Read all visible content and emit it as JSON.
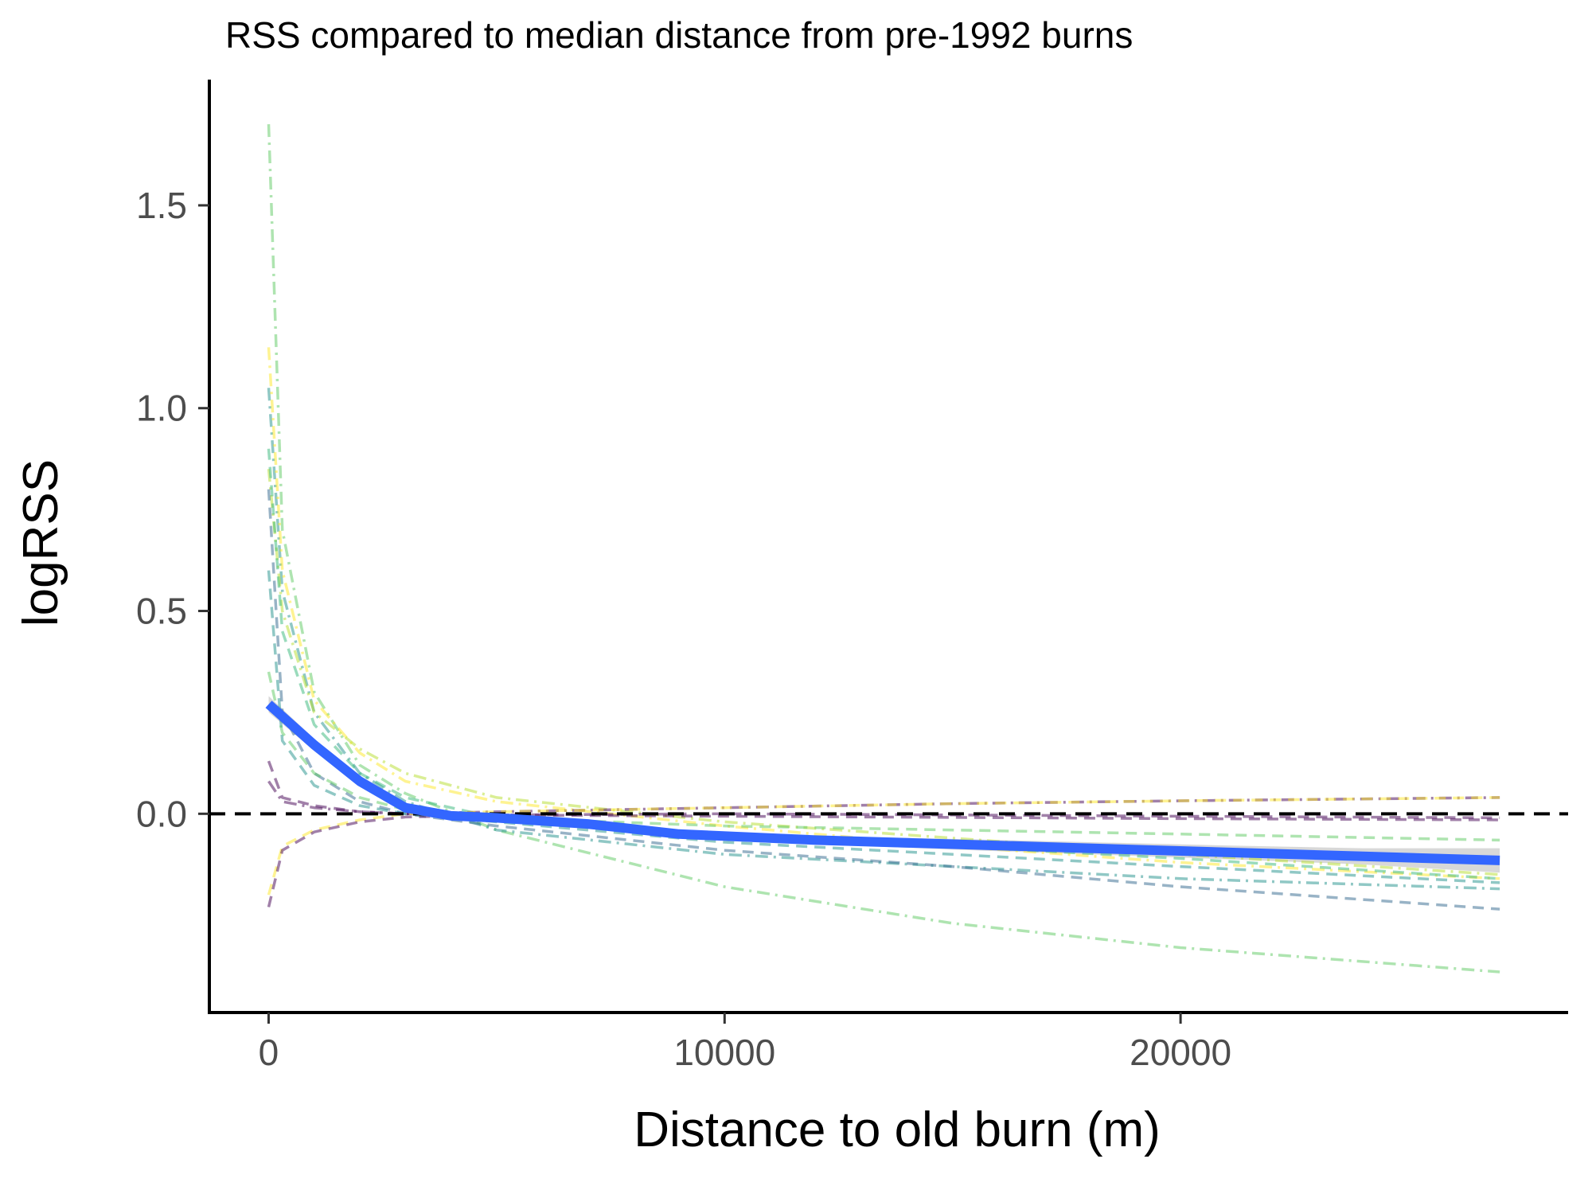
{
  "chart_data": {
    "type": "line",
    "title": "RSS compared to median distance from pre-1992 burns",
    "xlabel": "Distance to old burn (m)",
    "ylabel": "logRSS",
    "xlim": [
      -1300,
      28500
    ],
    "ylim": [
      -0.49,
      1.81
    ],
    "x_ticks": [
      0,
      10000,
      20000
    ],
    "x_tick_labels": [
      "0",
      "10000",
      "20000"
    ],
    "y_ticks": [
      0.0,
      0.5,
      1.0,
      1.5
    ],
    "y_tick_labels": [
      "0.0",
      "0.5",
      "1.0",
      "1.5"
    ],
    "grid": false,
    "legend": "none",
    "reference_line": {
      "y": 0,
      "color": "#000000",
      "style": "dashed"
    },
    "mean_fit": {
      "color": "#3366ff",
      "band_color": "#bebebe",
      "x": [
        0,
        1000,
        2000,
        3000,
        4000,
        5000,
        7000,
        9000,
        12000,
        15000,
        18000,
        21000,
        24000,
        27000
      ],
      "y": [
        0.27,
        0.17,
        0.08,
        0.015,
        -0.005,
        -0.01,
        -0.025,
        -0.05,
        -0.065,
        -0.075,
        -0.085,
        -0.095,
        -0.105,
        -0.115
      ],
      "lower": [
        0.25,
        0.155,
        0.07,
        0.005,
        -0.015,
        -0.02,
        -0.035,
        -0.06,
        -0.075,
        -0.088,
        -0.1,
        -0.112,
        -0.125,
        -0.145
      ],
      "upper": [
        0.29,
        0.185,
        0.09,
        0.025,
        0.005,
        0.0,
        -0.015,
        -0.04,
        -0.055,
        -0.062,
        -0.07,
        -0.078,
        -0.085,
        -0.085
      ]
    },
    "series": [
      {
        "color": "#5ec962",
        "dash": "dashdot",
        "x": [
          0,
          300,
          1000,
          2000,
          3000,
          5000,
          10000,
          15000,
          20000,
          27000
        ],
        "y": [
          1.7,
          0.7,
          0.3,
          0.12,
          0.05,
          -0.04,
          -0.18,
          -0.27,
          -0.33,
          -0.39
        ]
      },
      {
        "color": "#21918c",
        "dash": "dashdot",
        "x": [
          0,
          300,
          1000,
          2000,
          3000,
          5000,
          10000,
          15000,
          20000,
          27000
        ],
        "y": [
          1.05,
          0.55,
          0.25,
          0.1,
          0.03,
          -0.04,
          -0.1,
          -0.13,
          -0.16,
          -0.185
        ]
      },
      {
        "color": "#fde725",
        "dash": "dashdot",
        "x": [
          0,
          300,
          1000,
          2000,
          3000,
          5000,
          10000,
          15000,
          20000,
          27000
        ],
        "y": [
          1.15,
          0.6,
          0.28,
          0.15,
          0.08,
          0.03,
          -0.03,
          -0.08,
          -0.12,
          -0.16
        ]
      },
      {
        "color": "#b5de2b",
        "dash": "dashdot",
        "x": [
          0,
          300,
          1000,
          2000,
          3000,
          5000,
          10000,
          15000,
          20000,
          27000
        ],
        "y": [
          0.85,
          0.5,
          0.25,
          0.16,
          0.1,
          0.04,
          -0.02,
          -0.06,
          -0.1,
          -0.15
        ]
      },
      {
        "color": "#35b779",
        "dash": "dashed",
        "x": [
          0,
          300,
          1000,
          2000,
          3000,
          5000,
          10000,
          15000,
          20000,
          27000
        ],
        "y": [
          0.9,
          0.45,
          0.22,
          0.1,
          0.04,
          -0.01,
          -0.05,
          -0.08,
          -0.11,
          -0.16
        ]
      },
      {
        "color": "#31688e",
        "dash": "dashed",
        "x": [
          0,
          300,
          1000,
          2000,
          3000,
          5000,
          10000,
          15000,
          20000,
          27000
        ],
        "y": [
          0.8,
          0.25,
          0.1,
          0.03,
          0.0,
          -0.03,
          -0.09,
          -0.13,
          -0.18,
          -0.235
        ]
      },
      {
        "color": "#21918c",
        "dash": "dashed",
        "x": [
          0,
          300,
          1000,
          2000,
          3000,
          5000,
          10000,
          15000,
          20000,
          27000
        ],
        "y": [
          0.6,
          0.18,
          0.07,
          0.02,
          0.0,
          -0.02,
          -0.07,
          -0.1,
          -0.13,
          -0.17
        ]
      },
      {
        "color": "#5ec962",
        "dash": "dashed",
        "x": [
          0,
          300,
          1000,
          2000,
          3000,
          5000,
          10000,
          15000,
          20000,
          27000
        ],
        "y": [
          0.35,
          0.2,
          0.1,
          0.04,
          0.01,
          -0.01,
          -0.03,
          -0.04,
          -0.05,
          -0.065
        ]
      },
      {
        "color": "#440154",
        "dash": "dashed",
        "x": [
          0,
          300,
          1000,
          2000,
          3000,
          5000,
          10000,
          15000,
          20000,
          27000
        ],
        "y": [
          0.13,
          0.04,
          0.02,
          0.005,
          0.0,
          -0.003,
          -0.006,
          -0.009,
          -0.012,
          -0.015
        ]
      },
      {
        "color": "#440154",
        "dash": "dashdot",
        "x": [
          0,
          300,
          1000,
          2000,
          3000,
          5000,
          10000,
          15000,
          20000,
          27000
        ],
        "y": [
          0.08,
          0.03,
          0.015,
          0.005,
          0.0,
          0.005,
          0.015,
          0.025,
          0.032,
          0.04
        ]
      },
      {
        "color": "#fde725",
        "dash": "dashed",
        "x": [
          0,
          300,
          1000,
          2000,
          3000,
          5000,
          10000,
          15000,
          20000,
          27000
        ],
        "y": [
          -0.2,
          -0.08,
          -0.04,
          -0.015,
          0.0,
          0.005,
          0.015,
          0.025,
          0.032,
          0.04
        ]
      },
      {
        "color": "#440154",
        "dash": "dashed",
        "x": [
          0,
          300,
          1000,
          2000,
          3000,
          5000,
          10000,
          15000,
          20000,
          27000
        ],
        "y": [
          -0.23,
          -0.09,
          -0.045,
          -0.02,
          -0.008,
          -0.003,
          0.0,
          -0.003,
          -0.006,
          -0.01
        ]
      }
    ]
  }
}
